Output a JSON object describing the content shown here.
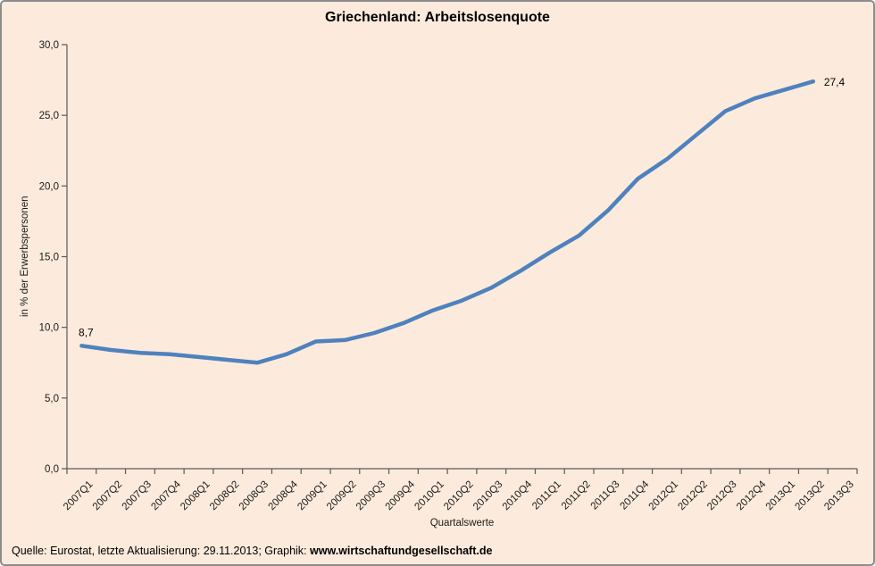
{
  "chart_data": {
    "type": "line",
    "title": "Griechenland: Arbeitslosenquote",
    "xlabel": "Quartalswerte",
    "ylabel": "in % der Erwerbspersonen",
    "ylim": [
      0,
      30
    ],
    "ytick_step": 5,
    "grid": false,
    "legend": "none",
    "decimal_separator": ",",
    "line_color": "#4F81BD",
    "background_color": "#FCEBDC",
    "axis_color": "#595959",
    "categories": [
      "2007Q1",
      "2007Q2",
      "2007Q3",
      "2007Q4",
      "2008Q1",
      "2008Q2",
      "2008Q3",
      "2008Q4",
      "2009Q1",
      "2009Q2",
      "2009Q3",
      "2009Q4",
      "2010Q1",
      "2010Q2",
      "2010Q3",
      "2010Q4",
      "2011Q1",
      "2011Q2",
      "2011Q3",
      "2011Q4",
      "2012Q1",
      "2012Q2",
      "2012Q3",
      "2012Q4",
      "2013Q1",
      "2013Q2",
      "2013Q3"
    ],
    "values": [
      8.7,
      8.4,
      8.2,
      8.1,
      7.9,
      7.7,
      7.5,
      8.1,
      9.0,
      9.1,
      9.6,
      10.3,
      11.2,
      11.9,
      12.8,
      14.0,
      15.3,
      16.5,
      18.3,
      20.5,
      21.9,
      23.6,
      25.3,
      26.2,
      26.8,
      27.4,
      null
    ],
    "annotations": [
      {
        "category": "2007Q1",
        "label": "8,7",
        "position": "above"
      },
      {
        "category": "2013Q2",
        "label": "27,4",
        "position": "right"
      }
    ]
  },
  "footer": {
    "text_normal": "Quelle: Eurostat, letzte Aktualisierung: 29.11.2013; Graphik: ",
    "text_bold": "www.wirtschaftundgesellschaft.de"
  }
}
